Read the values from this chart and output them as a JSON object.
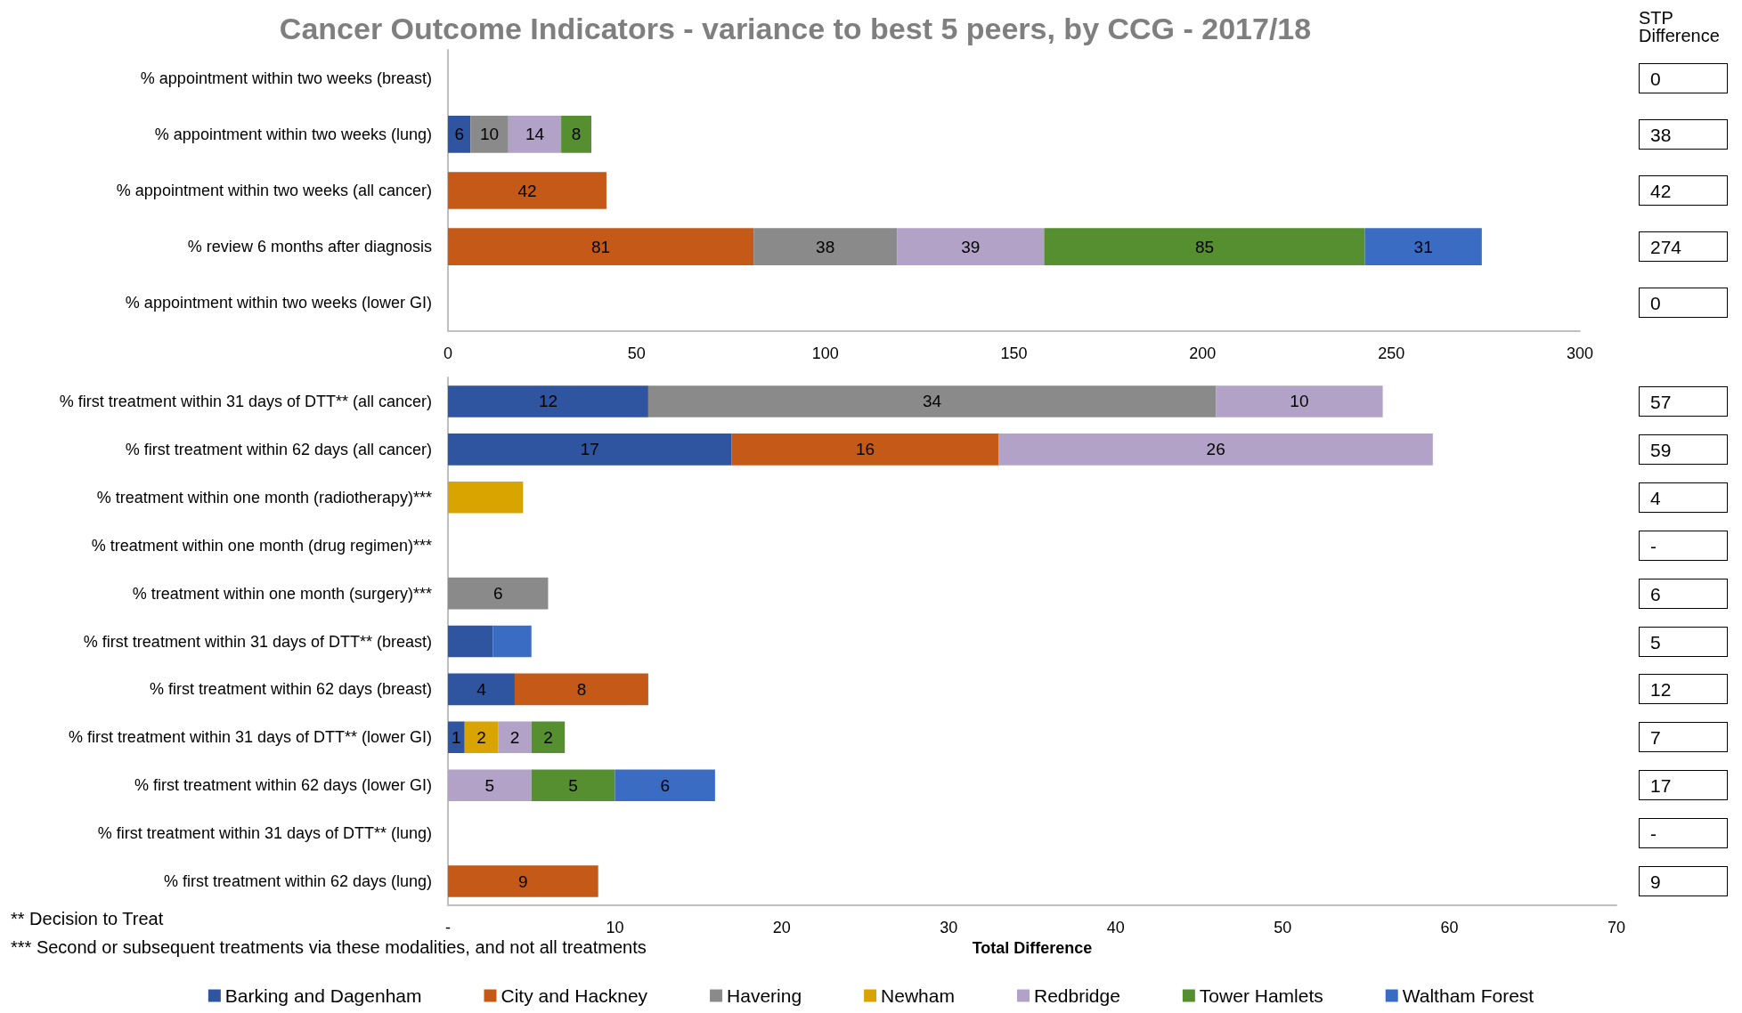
{
  "chart_data": [
    {
      "type": "bar",
      "orientation": "horizontal",
      "stacked": true,
      "title": "Cancer Outcome Indicators - variance to best 5 peers, by CCG - 2017/18",
      "categories": [
        "% appointment within two weeks (breast)",
        "% appointment within two weeks (lung)",
        "% appointment within two weeks (all cancer)",
        "% review 6 months after diagnosis",
        "% appointment within two weeks (lower GI)"
      ],
      "series": [
        {
          "color": "#2f55a0",
          "values": [
            null,
            6,
            null,
            null,
            null
          ]
        },
        {
          "color": "#c55a18",
          "values": [
            null,
            null,
            42,
            81,
            null
          ]
        },
        {
          "color": "#8a8a8a",
          "values": [
            null,
            10,
            null,
            38,
            null
          ]
        },
        {
          "color": "#b3a2c7",
          "values": [
            null,
            14,
            null,
            39,
            null
          ]
        },
        {
          "color": "#568f30",
          "values": [
            null,
            8,
            null,
            85,
            null
          ]
        },
        {
          "color": "#3b6cc4",
          "values": [
            null,
            null,
            null,
            31,
            null
          ]
        }
      ],
      "xlim": [
        0,
        300
      ],
      "xticks": [
        0,
        50,
        100,
        150,
        200,
        250,
        300
      ],
      "data_labels": true,
      "annotations": [
        "STP Difference",
        "0",
        "38",
        "42",
        "274",
        "0"
      ],
      "legend": false,
      "grid": false
    },
    {
      "type": "bar",
      "orientation": "horizontal",
      "stacked": true,
      "xlabel": "Total Difference",
      "categories": [
        "% first treatment within 31 days of DTT** (all cancer)",
        "% first treatment within 62 days (all cancer)",
        "% treatment within one month (radiotherapy)***",
        "% treatment within one month (drug regimen)***",
        "% treatment within one month (surgery)***",
        "% first treatment within 31 days of DTT** (breast)",
        "% first treatment within 62 days (breast)",
        "% first treatment within 31 days of DTT** (lower GI)",
        "% first treatment within 62 days (lower GI)",
        "% first treatment within 31 days of DTT** (lung)",
        "% first treatment within 62 days (lung)"
      ],
      "series": [
        {
          "name": "Barking and Dagenham",
          "color": "#2f55a0",
          "values": [
            12,
            17,
            null,
            null,
            null,
            2.7,
            4,
            1,
            null,
            null,
            null
          ],
          "value_labels": [
            "12",
            "17",
            null,
            null,
            null,
            null,
            "4",
            "1",
            null,
            null,
            null
          ]
        },
        {
          "name": "City and Hackney",
          "color": "#c55a18",
          "values": [
            null,
            16,
            null,
            null,
            null,
            null,
            8,
            null,
            null,
            null,
            9
          ],
          "value_labels": [
            null,
            "16",
            null,
            null,
            null,
            null,
            "8",
            null,
            null,
            null,
            "9"
          ]
        },
        {
          "name": "Havering",
          "color": "#8a8a8a",
          "values": [
            34,
            null,
            null,
            null,
            6,
            null,
            null,
            null,
            null,
            null,
            null
          ],
          "value_labels": [
            "34",
            null,
            null,
            null,
            "6",
            null,
            null,
            null,
            null,
            null,
            null
          ]
        },
        {
          "name": "Newham",
          "color": "#d9a300",
          "values": [
            null,
            null,
            4.5,
            null,
            null,
            null,
            null,
            2,
            null,
            null,
            null
          ],
          "value_labels": [
            null,
            null,
            null,
            null,
            null,
            null,
            null,
            "2",
            null,
            null,
            null
          ]
        },
        {
          "name": "Redbridge",
          "color": "#b3a2c7",
          "values": [
            10,
            26,
            null,
            null,
            null,
            null,
            null,
            2,
            5,
            null,
            null
          ],
          "value_labels": [
            "10",
            "26",
            null,
            null,
            null,
            null,
            null,
            "2",
            "5",
            null,
            null
          ]
        },
        {
          "name": "Tower Hamlets",
          "color": "#568f30",
          "values": [
            null,
            null,
            null,
            null,
            null,
            null,
            null,
            2,
            5,
            null,
            null
          ],
          "value_labels": [
            null,
            null,
            null,
            null,
            null,
            null,
            null,
            "2",
            "5",
            null,
            null
          ]
        },
        {
          "name": "Waltham Forest",
          "color": "#3b6cc4",
          "values": [
            null,
            null,
            null,
            null,
            null,
            2.3,
            null,
            null,
            6,
            null,
            null
          ],
          "value_labels": [
            null,
            null,
            null,
            null,
            null,
            null,
            null,
            null,
            "6",
            null,
            null
          ]
        }
      ],
      "xlim": [
        0,
        70
      ],
      "xticks": [
        {
          "value": 0,
          "label": "-"
        },
        10,
        20,
        30,
        40,
        50,
        60,
        70
      ],
      "annotations": [
        "** Decision to Treat",
        "*** Second or subsequent treatments via these modalities, and not all treatments",
        "57",
        "59",
        "4",
        "-",
        "6",
        "5",
        "12",
        "7",
        "17",
        "-",
        "9"
      ],
      "legend": "bottom",
      "grid": false
    }
  ]
}
